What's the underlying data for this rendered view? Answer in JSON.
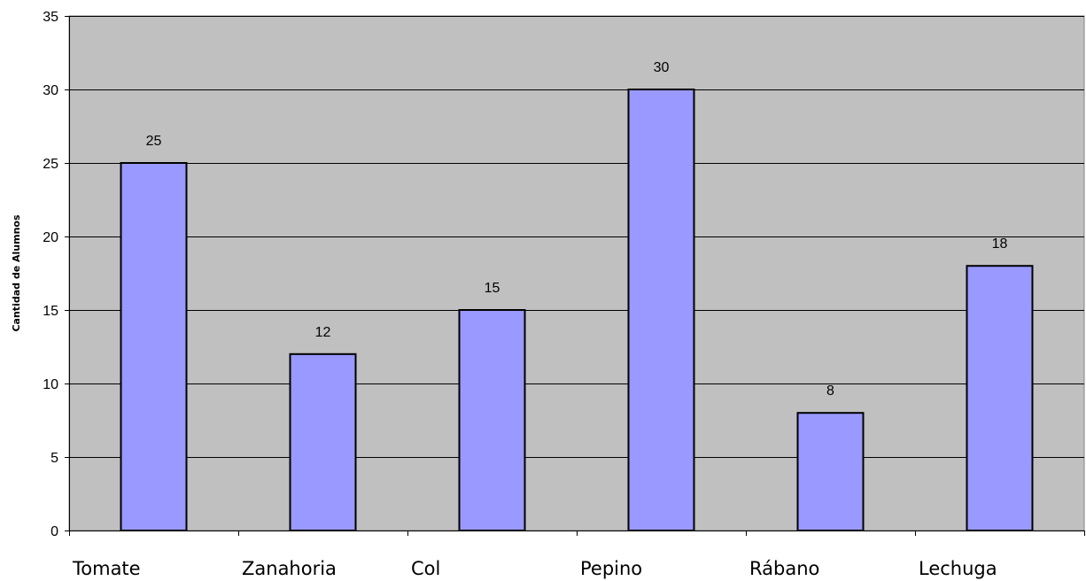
{
  "chart_data": {
    "type": "bar",
    "title": "",
    "xlabel": "",
    "ylabel": "Cantidad de Alumnos",
    "categories": [
      "Tomate",
      "Zanahoria",
      "Col",
      "Pepino",
      "Rábano",
      "Lechuga"
    ],
    "values": [
      25,
      12,
      15,
      30,
      8,
      18
    ],
    "ylim": [
      0,
      35
    ],
    "yticks": [
      0,
      5,
      10,
      15,
      20,
      25,
      30,
      35
    ],
    "grid": true,
    "data_labels": true,
    "colors": {
      "plot_background": "#c0c0c0",
      "bar_fill": "#9999ff",
      "bar_stroke": "#000000",
      "gridline": "#000000"
    }
  }
}
